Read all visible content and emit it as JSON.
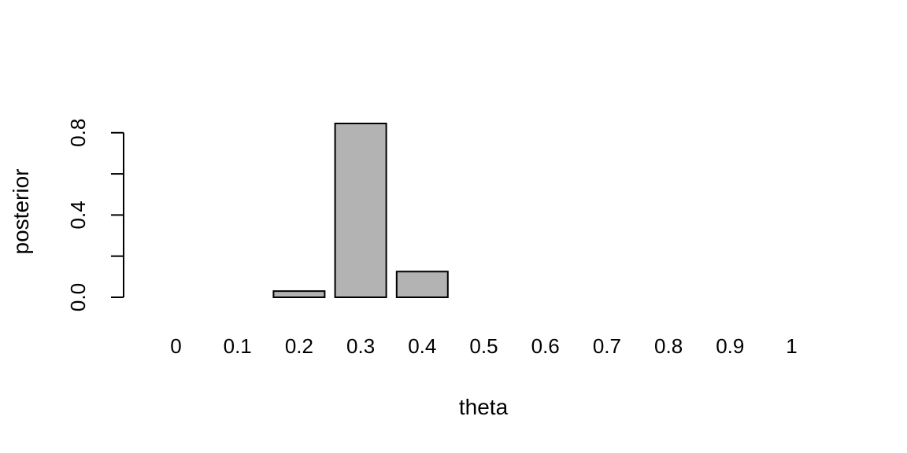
{
  "chart_data": {
    "type": "bar",
    "title": "",
    "xlabel": "theta",
    "ylabel": "posterior",
    "categories": [
      "0",
      "0.1",
      "0.2",
      "0.3",
      "0.4",
      "0.5",
      "0.6",
      "0.7",
      "0.8",
      "0.9",
      "1"
    ],
    "values": [
      0.0,
      0.0,
      0.03,
      0.845,
      0.125,
      0.0,
      0.0,
      0.0,
      0.0,
      0.0,
      0.0
    ],
    "ylim": [
      0,
      0.845
    ],
    "yticks": [
      0.0,
      0.2,
      0.4,
      0.6,
      0.8
    ],
    "ytick_labels": [
      "0.0",
      "",
      "0.4",
      "",
      "0.8"
    ],
    "bar_color": "#b3b3b3",
    "grid": false,
    "legend": "none"
  }
}
